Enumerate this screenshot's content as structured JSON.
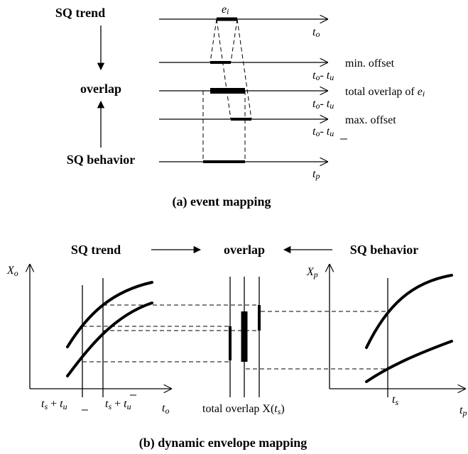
{
  "part_a": {
    "left_labels": {
      "trend": "SQ trend",
      "overlap": "overlap",
      "behavior": "SQ behavior"
    },
    "event_label": "e",
    "event_sub": "i",
    "lines": [
      {
        "axis": "t",
        "axis_sub": "o",
        "note": ""
      },
      {
        "axis": "t",
        "axis_sub": "o",
        "minus": "- ",
        "axis2": "t",
        "axis2_sub": "u",
        "note": "min. offset"
      },
      {
        "axis": "t",
        "axis_sub": "o",
        "minus": "- ",
        "axis2": "t",
        "axis2_sub": "u",
        "note": "total overlap of ",
        "note_var": "e",
        "note_var_sub": "i"
      },
      {
        "axis": "t",
        "axis_sub": "o",
        "minus": "- ",
        "axis2": "t",
        "axis2_sub": "u",
        "note": "max. offset"
      },
      {
        "axis": "t",
        "axis_sub": "p",
        "note": ""
      }
    ],
    "caption": "(a) event mapping"
  },
  "part_b": {
    "header": {
      "trend": "SQ trend",
      "overlap": "overlap",
      "behavior": "SQ behavior"
    },
    "left_axis": {
      "y": "X",
      "y_sub": "o",
      "x": "t",
      "x_sub": "o"
    },
    "left_ticks": {
      "first": {
        "t": "t",
        "t_sub": "s",
        "plus": " + ",
        "u": "t",
        "u_sub": "u"
      },
      "second": {
        "t": "t",
        "t_sub": "s",
        "plus": " + ",
        "u": "t",
        "u_sub": "u"
      }
    },
    "middle_label": {
      "text": "total overlap X(",
      "t": "t",
      "t_sub": "s",
      "close": ")"
    },
    "right_axis": {
      "y": "X",
      "y_sub": "p",
      "x": "t",
      "x_sub": "p"
    },
    "right_tick": {
      "t": "t",
      "t_sub": "s"
    },
    "caption": "(b) dynamic envelope mapping"
  }
}
